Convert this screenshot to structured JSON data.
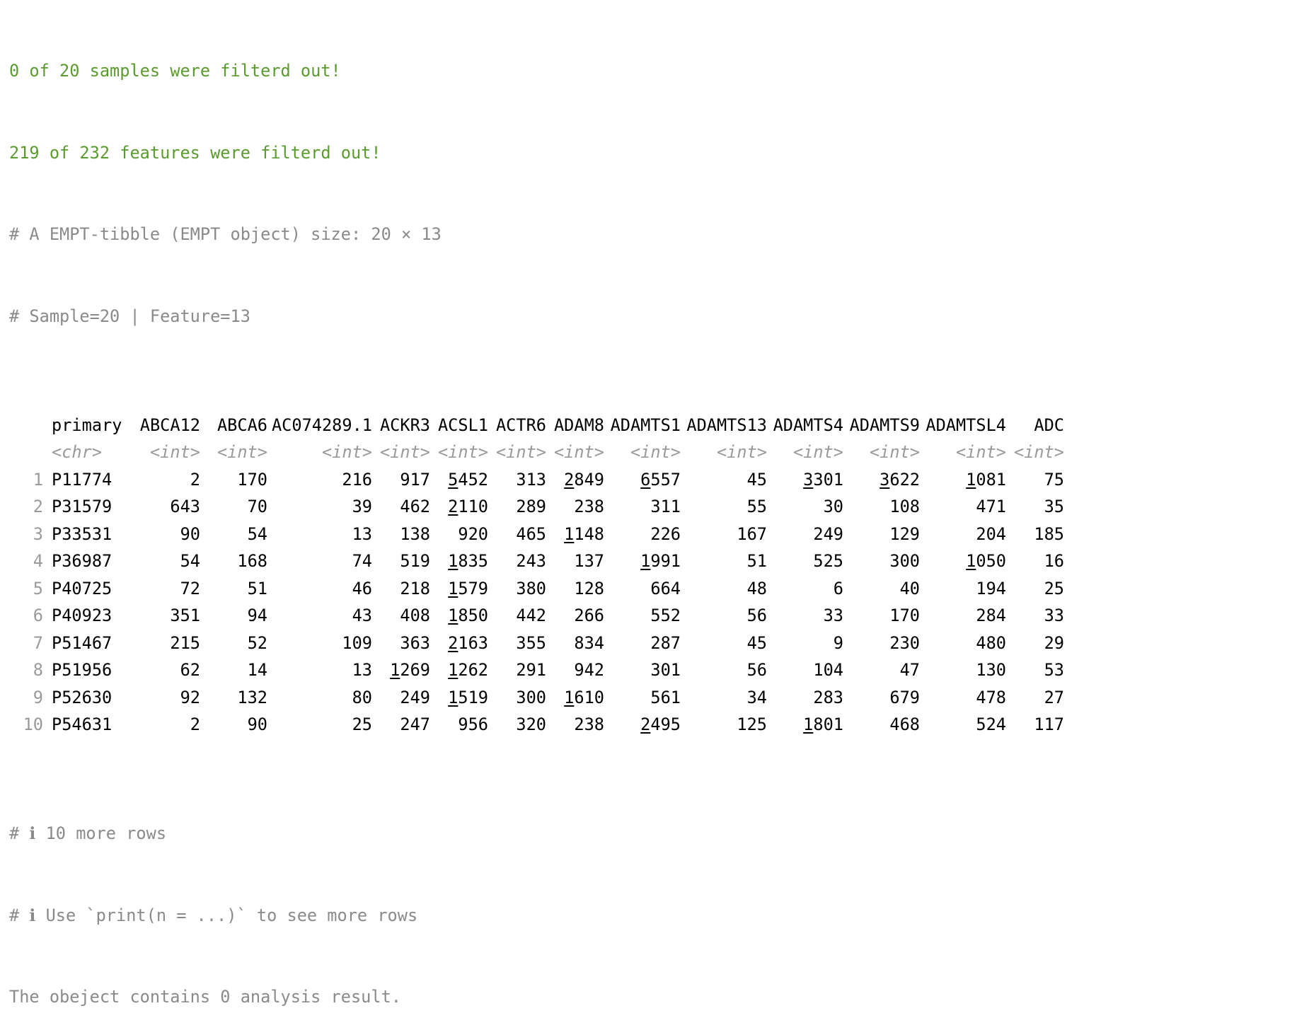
{
  "messages": {
    "samples_filtered": "0 of 20 samples were filterd out!",
    "features_filtered": "219 of 232 features were filterd out!"
  },
  "header": {
    "tibble_desc": "# A EMPT-tibble (EMPT object) size: 20 × 13",
    "dims": "# Sample=20 | Feature=13"
  },
  "table": {
    "columns": [
      {
        "name": "primary",
        "type": "<chr>"
      },
      {
        "name": "ABCA12",
        "type": "<int>"
      },
      {
        "name": "ABCA6",
        "type": "<int>"
      },
      {
        "name": "AC074289.1",
        "type": "<int>"
      },
      {
        "name": "ACKR3",
        "type": "<int>"
      },
      {
        "name": "ACSL1",
        "type": "<int>"
      },
      {
        "name": "ACTR6",
        "type": "<int>"
      },
      {
        "name": "ADAM8",
        "type": "<int>"
      },
      {
        "name": "ADAMTS1",
        "type": "<int>"
      },
      {
        "name": "ADAMTS13",
        "type": "<int>"
      },
      {
        "name": "ADAMTS4",
        "type": "<int>"
      },
      {
        "name": "ADAMTS9",
        "type": "<int>"
      },
      {
        "name": "ADAMTSL4",
        "type": "<int>"
      },
      {
        "name": "ADC",
        "type": "<int>"
      }
    ],
    "rows": [
      {
        "n": "1",
        "cells": [
          "P11774",
          "2",
          "170",
          "216",
          "917",
          "5452",
          "313",
          "2849",
          "6557",
          "45",
          "3301",
          "3622",
          "1081",
          "75"
        ]
      },
      {
        "n": "2",
        "cells": [
          "P31579",
          "643",
          "70",
          "39",
          "462",
          "2110",
          "289",
          "238",
          "311",
          "55",
          "30",
          "108",
          "471",
          "35"
        ]
      },
      {
        "n": "3",
        "cells": [
          "P33531",
          "90",
          "54",
          "13",
          "138",
          "920",
          "465",
          "1148",
          "226",
          "167",
          "249",
          "129",
          "204",
          "185"
        ]
      },
      {
        "n": "4",
        "cells": [
          "P36987",
          "54",
          "168",
          "74",
          "519",
          "1835",
          "243",
          "137",
          "1991",
          "51",
          "525",
          "300",
          "1050",
          "16"
        ]
      },
      {
        "n": "5",
        "cells": [
          "P40725",
          "72",
          "51",
          "46",
          "218",
          "1579",
          "380",
          "128",
          "664",
          "48",
          "6",
          "40",
          "194",
          "25"
        ]
      },
      {
        "n": "6",
        "cells": [
          "P40923",
          "351",
          "94",
          "43",
          "408",
          "1850",
          "442",
          "266",
          "552",
          "56",
          "33",
          "170",
          "284",
          "33"
        ]
      },
      {
        "n": "7",
        "cells": [
          "P51467",
          "215",
          "52",
          "109",
          "363",
          "2163",
          "355",
          "834",
          "287",
          "45",
          "9",
          "230",
          "480",
          "29"
        ]
      },
      {
        "n": "8",
        "cells": [
          "P51956",
          "62",
          "14",
          "13",
          "1269",
          "1262",
          "291",
          "942",
          "301",
          "56",
          "104",
          "47",
          "130",
          "53"
        ]
      },
      {
        "n": "9",
        "cells": [
          "P52630",
          "92",
          "132",
          "80",
          "249",
          "1519",
          "300",
          "1610",
          "561",
          "34",
          "283",
          "679",
          "478",
          "27"
        ]
      },
      {
        "n": "10",
        "cells": [
          "P54631",
          "2",
          "90",
          "25",
          "247",
          "956",
          "320",
          "238",
          "2495",
          "125",
          "1801",
          "468",
          "524",
          "117"
        ]
      }
    ]
  },
  "footer": {
    "more_rows": "# ℹ 10 more rows",
    "print_hint": "# ℹ Use `print(n = ...)` to see more rows",
    "analysis": "The obeject contains 0 analysis result."
  }
}
